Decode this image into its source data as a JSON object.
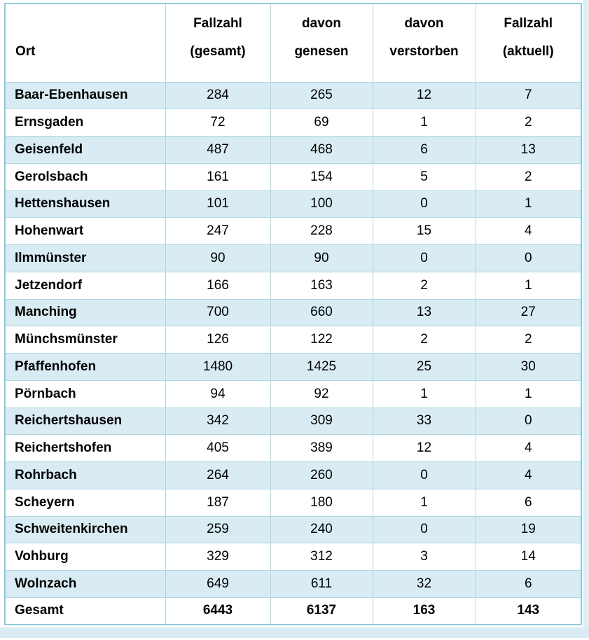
{
  "table": {
    "header": {
      "cols": [
        {
          "top": "",
          "bottom": "Ort"
        },
        {
          "top": "Fallzahl",
          "bottom": "(gesamt)"
        },
        {
          "top": "davon",
          "bottom": "genesen"
        },
        {
          "top": "davon",
          "bottom": "verstorben"
        },
        {
          "top": "Fallzahl",
          "bottom": "(aktuell)"
        }
      ]
    },
    "rows": [
      {
        "ort": "Baar-Ebenhausen",
        "gesamt": "284",
        "genesen": "265",
        "verstorben": "12",
        "aktuell": "7"
      },
      {
        "ort": "Ernsgaden",
        "gesamt": "72",
        "genesen": "69",
        "verstorben": "1",
        "aktuell": "2"
      },
      {
        "ort": "Geisenfeld",
        "gesamt": "487",
        "genesen": "468",
        "verstorben": "6",
        "aktuell": "13"
      },
      {
        "ort": "Gerolsbach",
        "gesamt": "161",
        "genesen": "154",
        "verstorben": "5",
        "aktuell": "2"
      },
      {
        "ort": "Hettenshausen",
        "gesamt": "101",
        "genesen": "100",
        "verstorben": "0",
        "aktuell": "1"
      },
      {
        "ort": "Hohenwart",
        "gesamt": "247",
        "genesen": "228",
        "verstorben": "15",
        "aktuell": "4"
      },
      {
        "ort": "Ilmmünster",
        "gesamt": "90",
        "genesen": "90",
        "verstorben": "0",
        "aktuell": "0"
      },
      {
        "ort": "Jetzendorf",
        "gesamt": "166",
        "genesen": "163",
        "verstorben": "2",
        "aktuell": "1"
      },
      {
        "ort": "Manching",
        "gesamt": "700",
        "genesen": "660",
        "verstorben": "13",
        "aktuell": "27"
      },
      {
        "ort": "Münchsmünster",
        "gesamt": "126",
        "genesen": "122",
        "verstorben": "2",
        "aktuell": "2"
      },
      {
        "ort": "Pfaffenhofen",
        "gesamt": "1480",
        "genesen": "1425",
        "verstorben": "25",
        "aktuell": "30"
      },
      {
        "ort": "Pörnbach",
        "gesamt": "94",
        "genesen": "92",
        "verstorben": "1",
        "aktuell": "1"
      },
      {
        "ort": "Reichertshausen",
        "gesamt": "342",
        "genesen": "309",
        "verstorben": "33",
        "aktuell": "0"
      },
      {
        "ort": "Reichertshofen",
        "gesamt": "405",
        "genesen": "389",
        "verstorben": "12",
        "aktuell": "4"
      },
      {
        "ort": "Rohrbach",
        "gesamt": "264",
        "genesen": "260",
        "verstorben": "0",
        "aktuell": "4"
      },
      {
        "ort": "Scheyern",
        "gesamt": "187",
        "genesen": "180",
        "verstorben": "1",
        "aktuell": "6"
      },
      {
        "ort": "Schweitenkirchen",
        "gesamt": "259",
        "genesen": "240",
        "verstorben": "0",
        "aktuell": "19"
      },
      {
        "ort": "Vohburg",
        "gesamt": "329",
        "genesen": "312",
        "verstorben": "3",
        "aktuell": "14"
      },
      {
        "ort": "Wolnzach",
        "gesamt": "649",
        "genesen": "611",
        "verstorben": "32",
        "aktuell": "6"
      },
      {
        "ort": "Gesamt",
        "gesamt": "6443",
        "genesen": "6137",
        "verstorben": "163",
        "aktuell": "143"
      }
    ],
    "total_label": "Gesamt"
  },
  "colors": {
    "row_stripe": "#d9ecf4",
    "cell_border": "#aed7e2",
    "outer_border": "#8fc9da",
    "text": "#000000",
    "background": "#ffffff"
  }
}
